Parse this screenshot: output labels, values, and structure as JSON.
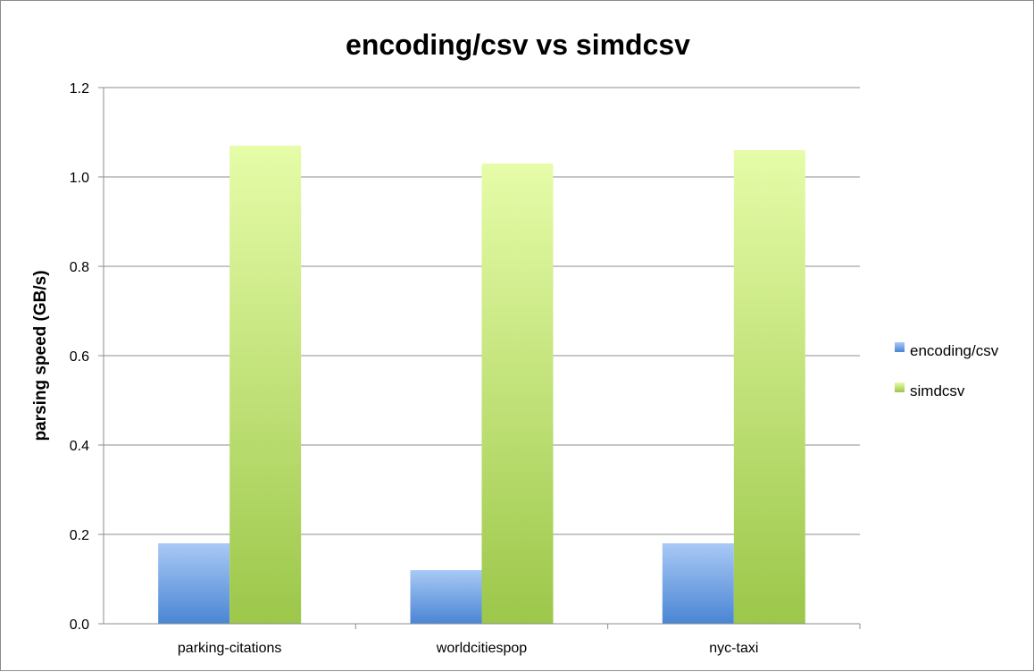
{
  "chart_data": {
    "type": "bar",
    "title": "encoding/csv vs simdcsv",
    "xlabel": "",
    "ylabel": "parsing speed (GB/s)",
    "categories": [
      "parking-citations",
      "worldcitiespop",
      "nyc-taxi"
    ],
    "series": [
      {
        "name": "encoding/csv",
        "values": [
          0.18,
          0.12,
          0.18
        ]
      },
      {
        "name": "simdcsv",
        "values": [
          1.07,
          1.03,
          1.06
        ]
      }
    ],
    "ylim": [
      0,
      1.2
    ],
    "yticks": [
      "0.0",
      "0.2",
      "0.4",
      "0.6",
      "0.8",
      "1.0",
      "1.2"
    ],
    "grid": true,
    "legend_position": "right"
  },
  "colors": {
    "encoding_top": "#a9c9f5",
    "encoding_bottom": "#4a85d4",
    "simdcsv_top": "#e6fca8",
    "simdcsv_bottom": "#9cc74a",
    "grid": "#8c8c8c",
    "axis": "#8c8c8c"
  }
}
